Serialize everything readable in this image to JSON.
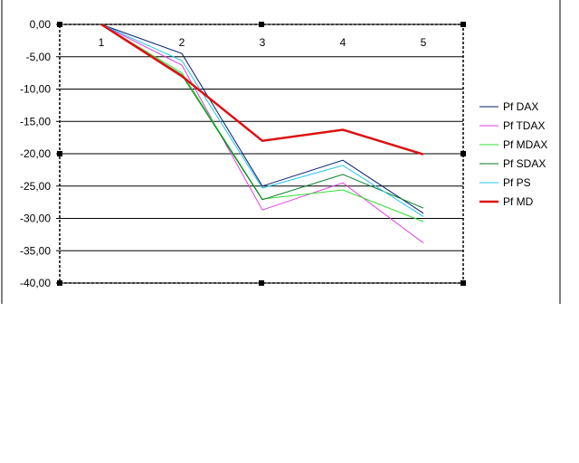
{
  "chart_data": {
    "type": "line",
    "title": "",
    "xlabel": "",
    "ylabel": "",
    "categories": [
      "1",
      "2",
      "3",
      "4",
      "5"
    ],
    "ylim": [
      -40,
      0
    ],
    "yticks": [
      0,
      -5,
      -10,
      -15,
      -20,
      -25,
      -30,
      -35,
      -40
    ],
    "ytick_labels": [
      "0,00",
      "-5,00",
      "-10,00",
      "-15,00",
      "-20,00",
      "-25,00",
      "-30,00",
      "-35,00",
      "-40,00"
    ],
    "grid": true,
    "legend_position": "right",
    "series": [
      {
        "name": "Pf DAX",
        "color": "#0a1f6e",
        "width": 1,
        "values": [
          0,
          -4.5,
          -25.0,
          -21.0,
          -29.2
        ]
      },
      {
        "name": "Pf TDAX",
        "color": "#e040e0",
        "width": 1,
        "values": [
          0,
          -6.3,
          -28.7,
          -24.5,
          -33.8
        ]
      },
      {
        "name": "Pf MDAX",
        "color": "#33dd33",
        "width": 1,
        "values": [
          0,
          -7.5,
          -27.0,
          -25.6,
          -30.5
        ]
      },
      {
        "name": "Pf SDAX",
        "color": "#007a1e",
        "width": 1,
        "values": [
          0,
          -7.8,
          -27.1,
          -23.2,
          -28.4
        ]
      },
      {
        "name": "Pf PS",
        "color": "#22c4e8",
        "width": 1,
        "values": [
          0,
          -5.6,
          -25.3,
          -21.8,
          -29.7
        ]
      },
      {
        "name": "Pf MD",
        "color": "#dd1111",
        "width": 2.5,
        "values": [
          0,
          -8.0,
          -18.0,
          -16.3,
          -20.1
        ]
      }
    ]
  }
}
